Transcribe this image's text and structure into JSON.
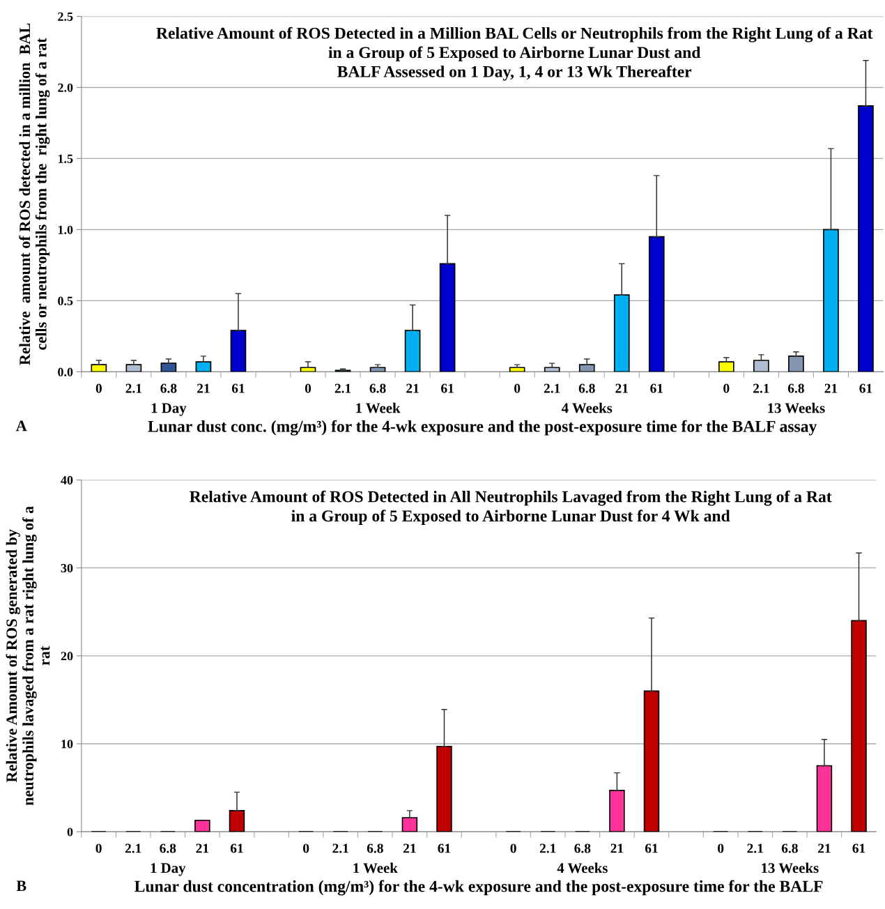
{
  "chart_data": [
    {
      "type": "bar",
      "title": "Relative Amount of ROS Detected in a Million BAL Cells or Neutrophils from the Right Lung of a Rat\nin a Group of 5 Exposed to Airborne Lunar Dust and\nBALF Assessed on 1 Day, 1, 4 or 13 Wk Thereafter",
      "ylabel": "Relative  amount of ROS detected in a million  BAL\ncells or neutrophils from the  right lung of a rat",
      "xlabel": "Lunar dust conc. (mg/m³) for the 4-wk exposure and the post-exposure time for the BALF assay",
      "categories": [
        "0",
        "2.1",
        "6.8",
        "21",
        "61",
        null,
        "0",
        "2.1",
        "6.8",
        "21",
        "61",
        null,
        "0",
        "2.1",
        "6.8",
        "21",
        "61",
        null,
        "0",
        "2.1",
        "6.8",
        "21",
        "61"
      ],
      "values": [
        0.05,
        0.05,
        0.06,
        0.07,
        0.29,
        null,
        0.03,
        0.01,
        0.03,
        0.29,
        0.76,
        null,
        0.03,
        0.03,
        0.05,
        0.54,
        0.95,
        null,
        0.07,
        0.08,
        0.11,
        1.0,
        1.87
      ],
      "errors": [
        [
          0.05,
          0.08
        ],
        [
          0.05,
          0.08
        ],
        [
          0.06,
          0.09
        ],
        [
          0.07,
          0.11
        ],
        [
          0.29,
          0.55
        ],
        null,
        [
          0.03,
          0.07
        ],
        [
          0.01,
          0.02
        ],
        [
          0.03,
          0.05
        ],
        [
          0.29,
          0.47
        ],
        [
          0.76,
          1.1
        ],
        null,
        [
          0.03,
          0.05
        ],
        [
          0.03,
          0.06
        ],
        [
          0.05,
          0.09
        ],
        [
          0.54,
          0.76
        ],
        [
          0.95,
          1.38
        ],
        null,
        [
          0.07,
          0.1
        ],
        [
          0.08,
          0.12
        ],
        [
          0.11,
          0.14
        ],
        [
          1.0,
          1.57
        ],
        [
          1.87,
          2.19
        ]
      ],
      "colors": [
        "#ffff00",
        "#b0bcd0",
        "#2f5597",
        "#00b0f0",
        "#0000cc",
        null,
        "#ffff00",
        "#1f6f8f",
        "#8496b0",
        "#00b0f0",
        "#0000cc",
        null,
        "#ffff00",
        "#b0bcd0",
        "#8496b0",
        "#00b0f0",
        "#0000cc",
        null,
        "#ffff00",
        "#b0bcd0",
        "#8496b0",
        "#00b0f0",
        "#0000cc"
      ],
      "ylim": [
        0,
        2.5
      ],
      "yticks": [
        {
          "value": 0,
          "label": "0.0"
        },
        {
          "value": 0.5,
          "label": "0.5"
        },
        {
          "value": 1,
          "label": "1.0"
        },
        {
          "value": 1.5,
          "label": "1.5"
        },
        {
          "value": 2,
          "label": "2.0"
        },
        {
          "value": 2.5,
          "label": "2.5"
        }
      ],
      "grid": "y",
      "annotations": [
        "1 Day",
        "1 Week",
        "4 Weeks",
        "13 Weeks",
        "A"
      ]
    },
    {
      "type": "bar",
      "title": "Relative Amount of ROS Detected in All Neutrophils Lavaged from the Right Lung of a Rat\nin a Group of 5 Exposed to Airborne Lunar Dust for 4 Wk and",
      "ylabel": "Relative Amount of ROS generated by\nneutrophils lavaged from a rat right lung of a\nrat",
      "xlabel": "Lunar dust concentration (mg/m³) for the 4-wk exposure and the post-exposure time for the BALF",
      "categories": [
        "0",
        "2.1",
        "6.8",
        "21",
        "61",
        null,
        "0",
        "2.1",
        "6.8",
        "21",
        "61",
        null,
        "0",
        "2.1",
        "6.8",
        "21",
        "61",
        null,
        "0",
        "2.1",
        "6.8",
        "21",
        "61"
      ],
      "values": [
        0,
        0,
        0,
        1.3,
        2.4,
        null,
        0,
        0,
        0,
        1.6,
        9.7,
        null,
        0,
        0,
        0,
        4.7,
        16.0,
        null,
        0,
        0,
        0,
        7.5,
        24.0
      ],
      "errors": [
        null,
        null,
        null,
        null,
        [
          2.4,
          4.5
        ],
        null,
        null,
        null,
        null,
        [
          1.6,
          2.4
        ],
        [
          9.7,
          13.9
        ],
        null,
        null,
        null,
        null,
        [
          4.7,
          6.7
        ],
        [
          16.0,
          24.3
        ],
        null,
        null,
        null,
        null,
        [
          7.5,
          10.5
        ],
        [
          24.0,
          31.7
        ]
      ],
      "colors": [
        "#000000",
        "#000000",
        "#000000",
        "#ff3399",
        "#c00000",
        null,
        "#000000",
        "#000000",
        "#000000",
        "#ff3399",
        "#c00000",
        null,
        "#000000",
        "#000000",
        "#000000",
        "#ff3399",
        "#c00000",
        null,
        "#000000",
        "#000000",
        "#000000",
        "#ff3399",
        "#c00000"
      ],
      "ylim": [
        0,
        40
      ],
      "yticks": [
        0,
        10,
        20,
        30,
        40
      ],
      "grid": "y",
      "annotations": [
        "1 Day",
        "1 Week",
        "4 Weeks",
        "13 Weeks",
        "B"
      ]
    }
  ]
}
